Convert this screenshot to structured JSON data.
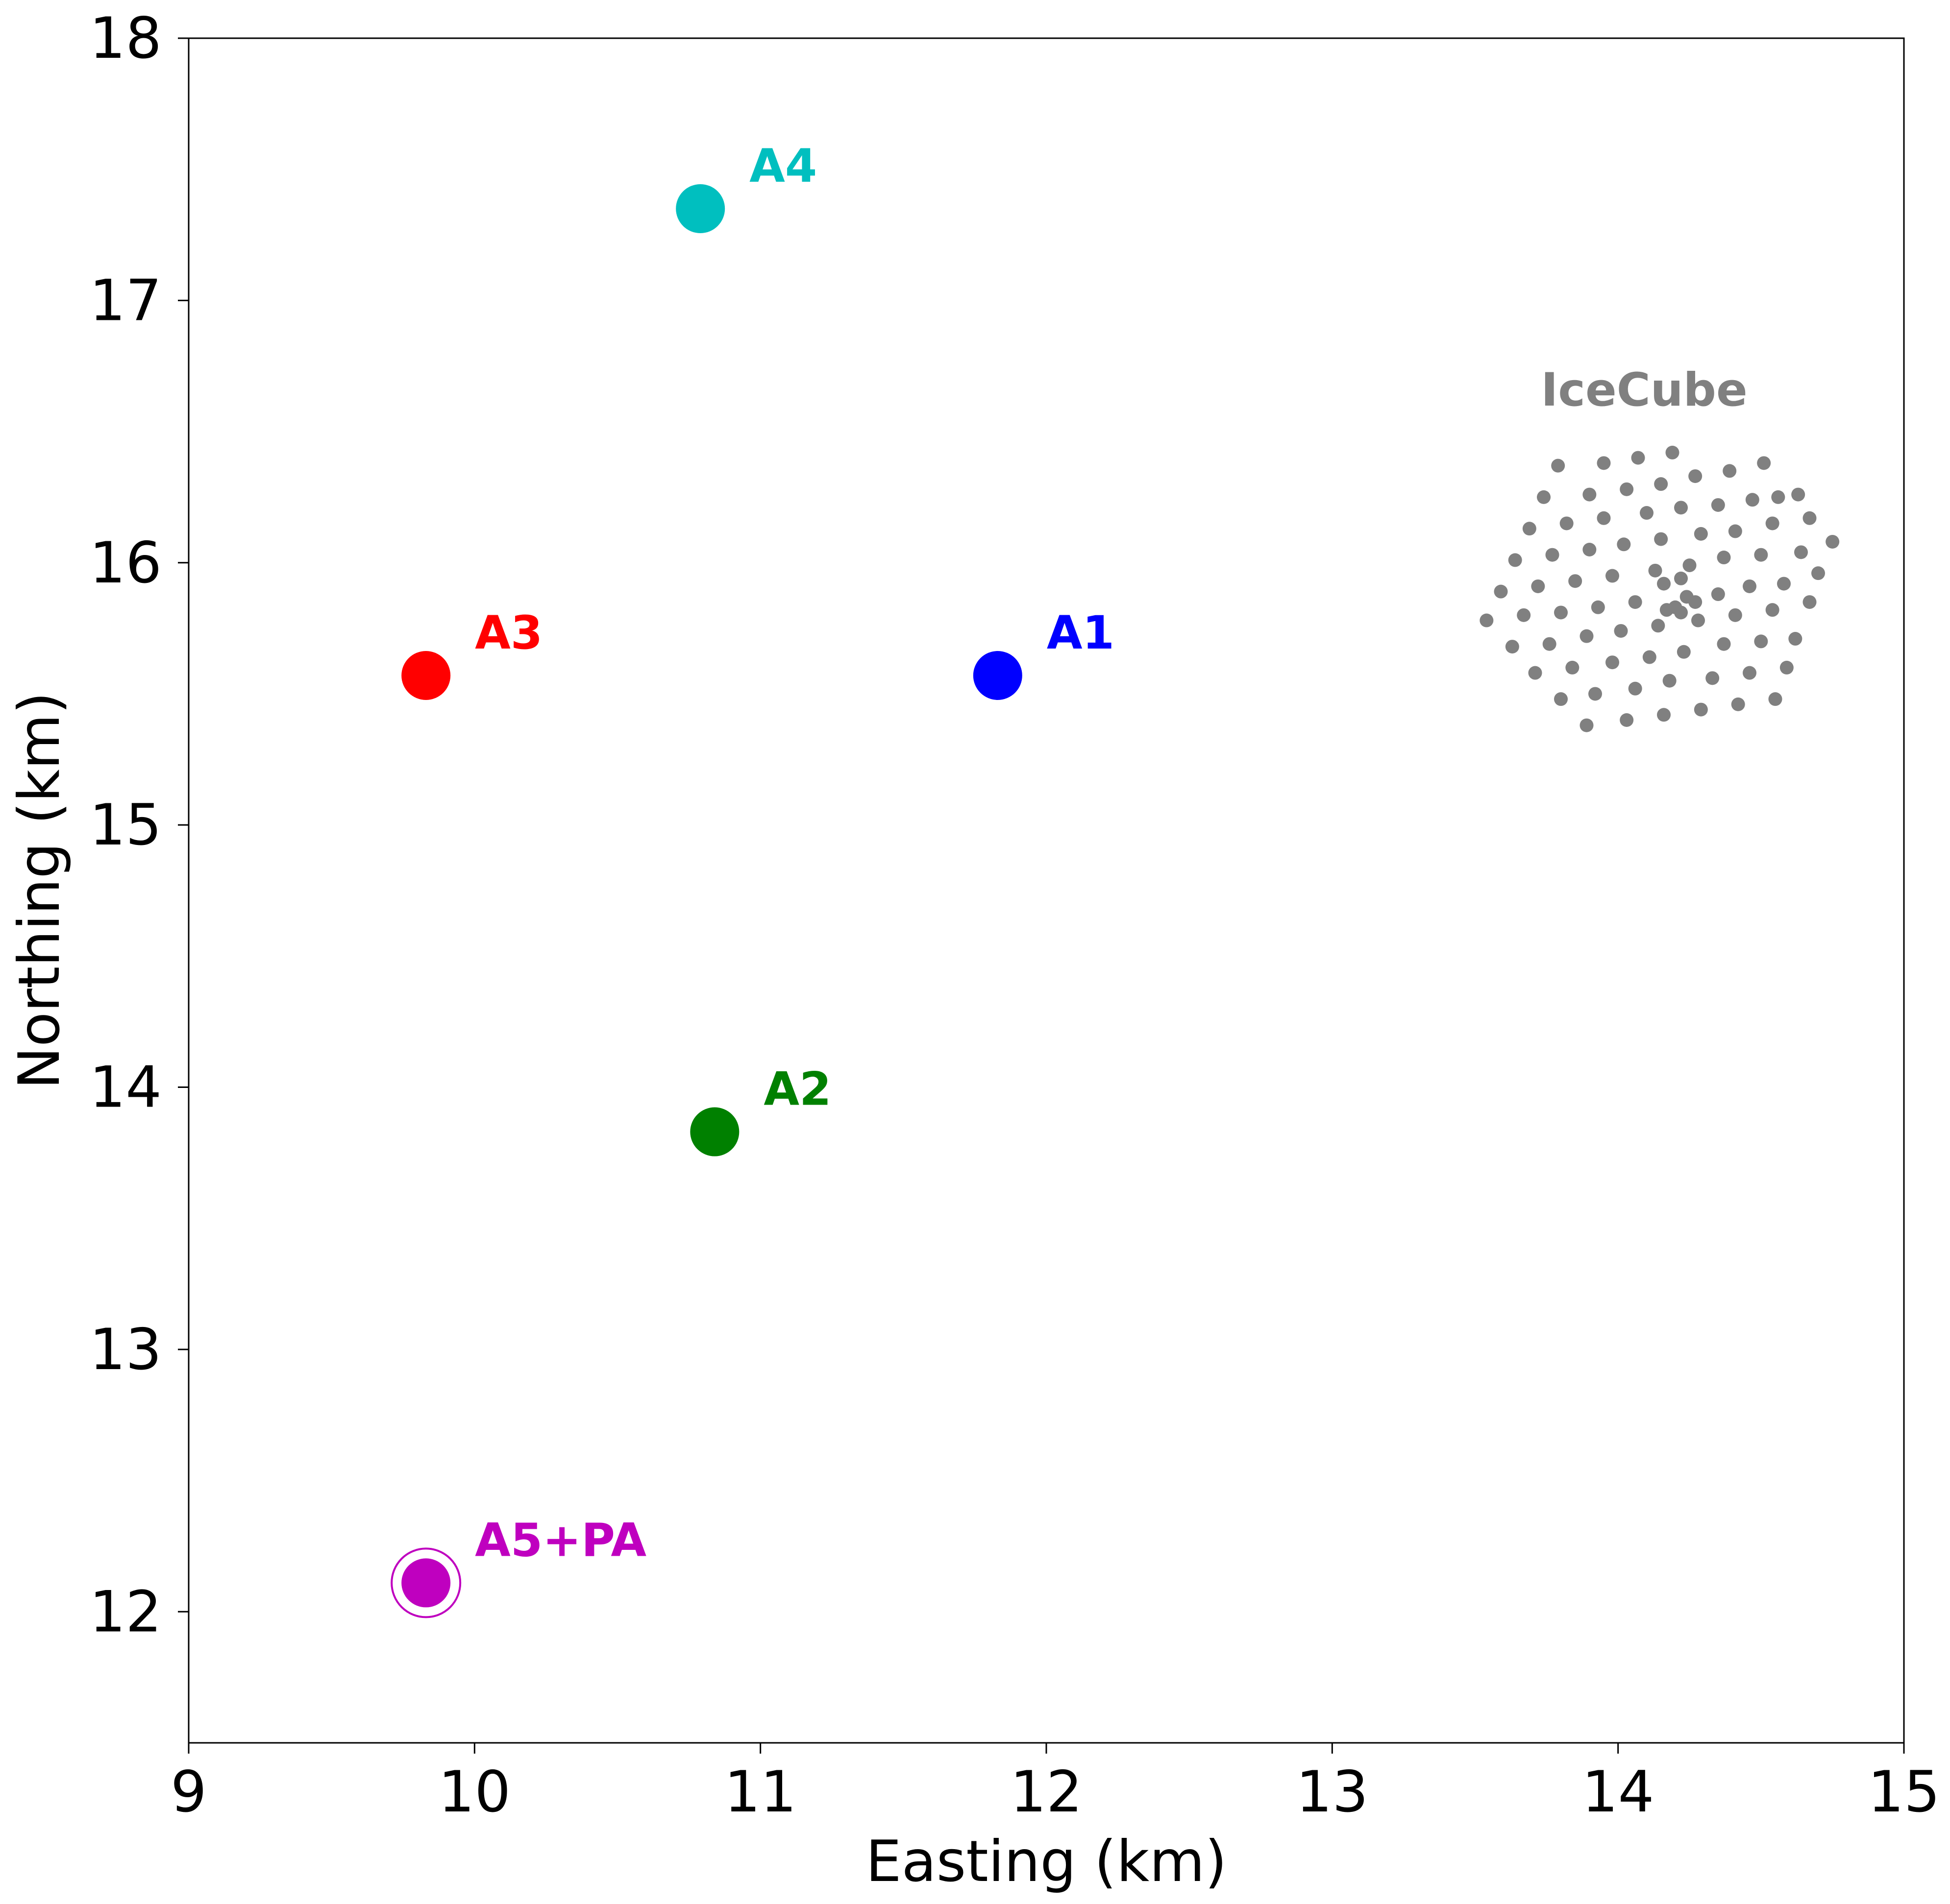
{
  "chart_data": {
    "type": "scatter",
    "title": "",
    "xlabel": "Easting (km)",
    "ylabel": "Northing (km)",
    "xlim": [
      9,
      15
    ],
    "ylim": [
      11.5,
      18
    ],
    "xticks": [
      "9",
      "10",
      "11",
      "12",
      "13",
      "14",
      "15"
    ],
    "yticks": [
      "12",
      "13",
      "14",
      "15",
      "16",
      "17",
      "18"
    ],
    "grid": false,
    "stations": [
      {
        "label": "A1",
        "x": 11.83,
        "y": 15.57,
        "color": "#0000ff",
        "ring": false
      },
      {
        "label": "A2",
        "x": 10.84,
        "y": 13.83,
        "color": "#008000",
        "ring": false
      },
      {
        "label": "A3",
        "x": 9.83,
        "y": 15.57,
        "color": "#ff0000",
        "ring": false
      },
      {
        "label": "A4",
        "x": 10.79,
        "y": 17.35,
        "color": "#00bfbf",
        "ring": false
      },
      {
        "label": "A5+PA",
        "x": 9.83,
        "y": 12.11,
        "color": "#bf00bf",
        "ring": true
      }
    ],
    "icecube": {
      "label": "IceCube",
      "color": "#808080",
      "strings": [
        [
          13.79,
          16.37
        ],
        [
          13.95,
          16.38
        ],
        [
          14.07,
          16.4
        ],
        [
          14.19,
          16.42
        ],
        [
          14.39,
          16.35
        ],
        [
          14.51,
          16.38
        ],
        [
          13.74,
          16.25
        ],
        [
          13.9,
          16.26
        ],
        [
          14.03,
          16.28
        ],
        [
          14.15,
          16.3
        ],
        [
          14.27,
          16.33
        ],
        [
          14.56,
          16.25
        ],
        [
          14.63,
          16.26
        ],
        [
          13.69,
          16.13
        ],
        [
          13.82,
          16.15
        ],
        [
          13.95,
          16.17
        ],
        [
          14.1,
          16.19
        ],
        [
          14.22,
          16.21
        ],
        [
          14.35,
          16.22
        ],
        [
          14.47,
          16.24
        ],
        [
          14.67,
          16.17
        ],
        [
          13.64,
          16.01
        ],
        [
          13.77,
          16.03
        ],
        [
          13.9,
          16.05
        ],
        [
          14.02,
          16.07
        ],
        [
          14.15,
          16.09
        ],
        [
          14.29,
          16.11
        ],
        [
          14.41,
          16.12
        ],
        [
          14.54,
          16.15
        ],
        [
          13.59,
          15.89
        ],
        [
          13.72,
          15.91
        ],
        [
          13.85,
          15.93
        ],
        [
          13.98,
          15.95
        ],
        [
          14.13,
          15.97
        ],
        [
          14.25,
          15.99
        ],
        [
          14.37,
          16.02
        ],
        [
          14.5,
          16.03
        ],
        [
          14.64,
          16.04
        ],
        [
          14.75,
          16.08
        ],
        [
          13.54,
          15.78
        ],
        [
          13.67,
          15.8
        ],
        [
          13.8,
          15.81
        ],
        [
          13.93,
          15.83
        ],
        [
          14.06,
          15.85
        ],
        [
          14.16,
          15.92
        ],
        [
          14.2,
          15.83
        ],
        [
          14.22,
          15.94
        ],
        [
          14.24,
          15.87
        ],
        [
          14.27,
          15.85
        ],
        [
          14.35,
          15.88
        ],
        [
          14.46,
          15.91
        ],
        [
          14.58,
          15.92
        ],
        [
          14.7,
          15.96
        ],
        [
          13.63,
          15.68
        ],
        [
          13.76,
          15.69
        ],
        [
          13.89,
          15.72
        ],
        [
          14.01,
          15.74
        ],
        [
          14.14,
          15.76
        ],
        [
          14.17,
          15.82
        ],
        [
          14.22,
          15.81
        ],
        [
          14.28,
          15.78
        ],
        [
          14.41,
          15.8
        ],
        [
          14.54,
          15.82
        ],
        [
          14.67,
          15.85
        ],
        [
          13.71,
          15.58
        ],
        [
          13.84,
          15.6
        ],
        [
          13.98,
          15.62
        ],
        [
          14.11,
          15.64
        ],
        [
          14.23,
          15.66
        ],
        [
          14.37,
          15.69
        ],
        [
          14.5,
          15.7
        ],
        [
          14.62,
          15.71
        ],
        [
          13.8,
          15.48
        ],
        [
          13.92,
          15.5
        ],
        [
          14.06,
          15.52
        ],
        [
          14.18,
          15.55
        ],
        [
          14.33,
          15.56
        ],
        [
          14.46,
          15.58
        ],
        [
          14.59,
          15.6
        ],
        [
          13.89,
          15.38
        ],
        [
          14.03,
          15.4
        ],
        [
          14.16,
          15.42
        ],
        [
          14.29,
          15.44
        ],
        [
          14.42,
          15.46
        ],
        [
          14.55,
          15.48
        ]
      ]
    }
  }
}
